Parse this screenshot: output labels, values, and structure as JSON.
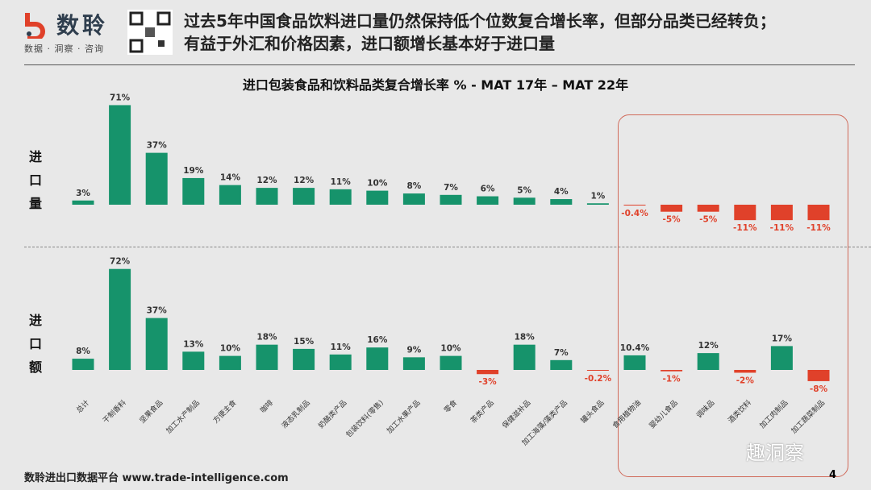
{
  "header": {
    "brand": "数聆",
    "tagline": "数据 · 洞察 · 咨询",
    "title_line1": "过去5年中国食品饮料进口量仍然保持低个位数复合增长率，但部分品类已经转负；",
    "title_line2": "有益于外汇和价格因素，进口额增长基本好于进口量"
  },
  "footer": {
    "text": "数聆进出口数据平台 www.trade-intelligence.com",
    "page": "4",
    "watermark": "趣洞察"
  },
  "colors": {
    "positive": "#16936b",
    "negative": "#e0412a",
    "highlight_box": "#d06a5a"
  },
  "chart_data": {
    "type": "bar",
    "title": "进口包装食品和饮料品类复合增长率 % - MAT 17年 – MAT 22年",
    "categories": [
      "总计",
      "干制香料",
      "坚果食品",
      "加工水产制品",
      "方便主食",
      "咖啡",
      "液态乳制品",
      "奶酪类产品",
      "包装饮料(零售)",
      "加工水果产品",
      "零食",
      "茶类产品",
      "保健滋补品",
      "加工海藻/藻类产品",
      "罐头食品",
      "食用植物油",
      "婴幼儿食品",
      "调味品",
      "酒类饮料",
      "加工肉制品",
      "加工蔬菜制品"
    ],
    "series": [
      {
        "name": "进口量",
        "values": [
          3,
          71,
          37,
          19,
          14,
          12,
          12,
          11,
          10,
          8,
          7,
          6,
          5,
          4,
          1,
          -0.4,
          -5,
          -5,
          -11,
          -11,
          -11
        ],
        "labels": [
          "3%",
          "71%",
          "37%",
          "19%",
          "14%",
          "12%",
          "12%",
          "11%",
          "10%",
          "8%",
          "7%",
          "6%",
          "5%",
          "4%",
          "1%",
          "-0.4%",
          "-5%",
          "-5%",
          "-11%",
          "-11%",
          "-11%"
        ]
      },
      {
        "name": "进口额",
        "values": [
          8,
          72,
          37,
          13,
          10,
          18,
          15,
          11,
          16,
          9,
          10,
          -3,
          18,
          7,
          -0.2,
          10.4,
          -1,
          12,
          -2,
          17,
          -8
        ],
        "labels": [
          "8%",
          "72%",
          "37%",
          "13%",
          "10%",
          "18%",
          "15%",
          "11%",
          "16%",
          "9%",
          "10%",
          "-3%",
          "18%",
          "7%",
          "-0.2%",
          "10.4%",
          "-1%",
          "12%",
          "-2%",
          "17%",
          "-8%"
        ]
      }
    ]
  }
}
